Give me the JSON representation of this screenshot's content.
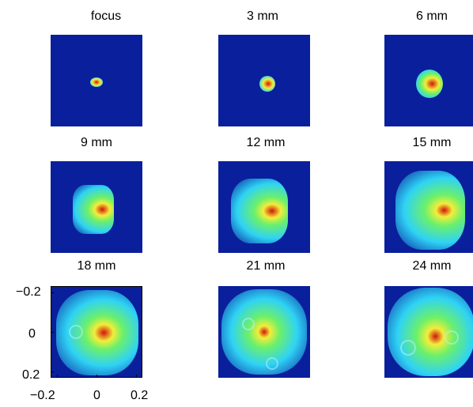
{
  "panels": [
    {
      "label": "focus"
    },
    {
      "label": "3 mm"
    },
    {
      "label": "6 mm"
    },
    {
      "label": "9 mm"
    },
    {
      "label": "12 mm"
    },
    {
      "label": "15 mm"
    },
    {
      "label": "18 mm"
    },
    {
      "label": "21 mm"
    },
    {
      "label": "24 mm"
    }
  ],
  "axes": {
    "y_ticks": [
      "−0.2",
      "0",
      "0.2"
    ],
    "x_ticks": [
      "−0.2",
      "0",
      "0.2"
    ]
  },
  "colors": {
    "background_blue": "#0a1f9c",
    "cyan": "#2fd3f5",
    "green": "#6cf06a",
    "yellow": "#f2ee3a",
    "red": "#d4140c"
  }
}
